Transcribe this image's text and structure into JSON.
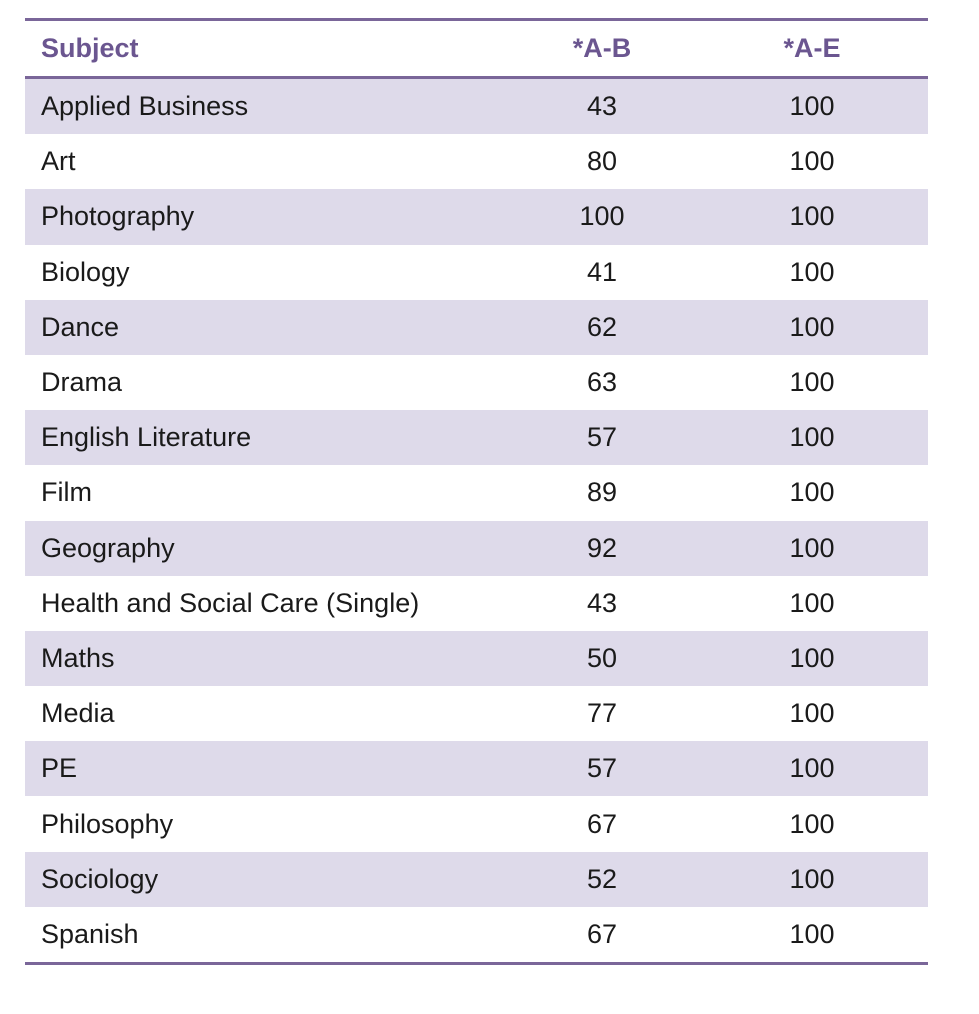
{
  "table": {
    "headers": [
      "Subject",
      "*A-B",
      "*A-E"
    ],
    "rows": [
      {
        "subject": "Applied Business",
        "ab": "43",
        "ae": "100"
      },
      {
        "subject": "Art",
        "ab": "80",
        "ae": "100"
      },
      {
        "subject": "Photography",
        "ab": "100",
        "ae": "100"
      },
      {
        "subject": "Biology",
        "ab": "41",
        "ae": "100"
      },
      {
        "subject": "Dance",
        "ab": "62",
        "ae": "100"
      },
      {
        "subject": "Drama",
        "ab": "63",
        "ae": "100"
      },
      {
        "subject": "English Literature",
        "ab": "57",
        "ae": "100"
      },
      {
        "subject": "Film",
        "ab": "89",
        "ae": "100"
      },
      {
        "subject": "Geography",
        "ab": "92",
        "ae": "100"
      },
      {
        "subject": "Health and Social Care (Single)",
        "ab": "43",
        "ae": "100"
      },
      {
        "subject": "Maths",
        "ab": "50",
        "ae": "100"
      },
      {
        "subject": "Media",
        "ab": "77",
        "ae": "100"
      },
      {
        "subject": "PE",
        "ab": "57",
        "ae": "100"
      },
      {
        "subject": "Philosophy",
        "ab": "67",
        "ae": "100"
      },
      {
        "subject": "Sociology",
        "ab": "52",
        "ae": "100"
      },
      {
        "subject": "Spanish",
        "ab": "67",
        "ae": "100"
      }
    ]
  },
  "colors": {
    "accent": "#7a6699",
    "header_text": "#6b5690",
    "row_shade": "#dedaea"
  }
}
